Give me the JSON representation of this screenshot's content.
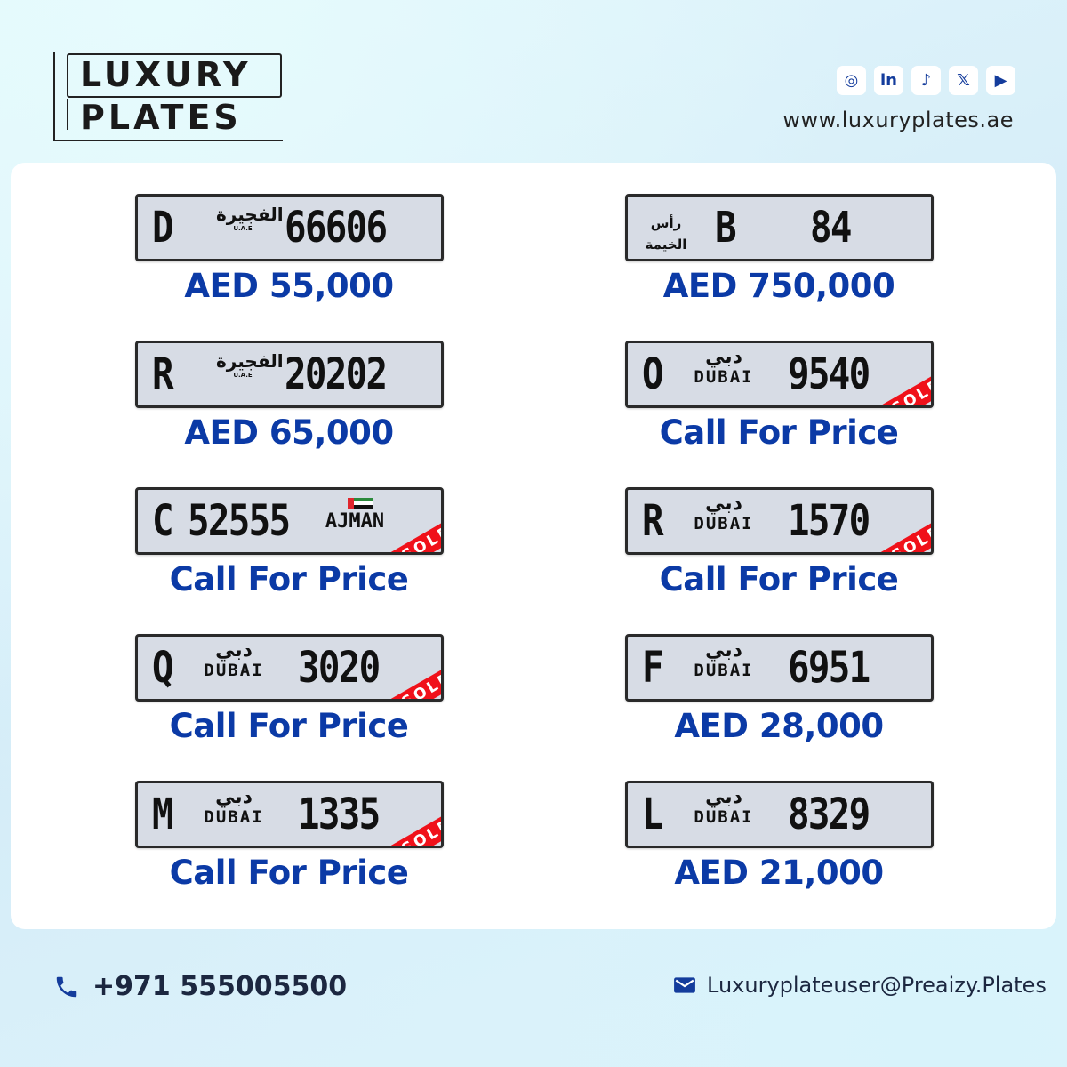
{
  "logo": {
    "line1": "LUXURY",
    "line2": "PLATES"
  },
  "header": {
    "social": [
      {
        "icon": "instagram-icon",
        "glyph": "◎"
      },
      {
        "icon": "linkedin-icon",
        "glyph": "in"
      },
      {
        "icon": "tiktok-icon",
        "glyph": "♪"
      },
      {
        "icon": "x-icon",
        "glyph": "𝕏"
      },
      {
        "icon": "youtube-icon",
        "glyph": "▶"
      }
    ],
    "website": "www.luxuryplates.ae"
  },
  "plates": [
    {
      "letter": "D",
      "number": "66606",
      "emirate": "fujairah",
      "emirate_ar": "الفجيرة",
      "emirate_en": "U.A.E",
      "sold": false,
      "price": "AED 55,000"
    },
    {
      "letter": "B",
      "number": "84",
      "emirate": "rak",
      "emirate_ar": "رأس الخيمة",
      "sold": false,
      "price": "AED 750,000"
    },
    {
      "letter": "R",
      "number": "20202",
      "emirate": "fujairah",
      "emirate_ar": "الفجيرة",
      "emirate_en": "U.A.E",
      "sold": false,
      "price": "AED 65,000"
    },
    {
      "letter": "O",
      "number": "9540",
      "emirate": "dubai",
      "emirate_ar": "دبي",
      "emirate_en": "DUBAI",
      "sold": true,
      "price": "Call For Price"
    },
    {
      "letter": "C",
      "number": "52555",
      "emirate": "ajman",
      "emirate_en": "AJMAN",
      "sold": true,
      "price": "Call For Price"
    },
    {
      "letter": "R",
      "number": "1570",
      "emirate": "dubai",
      "emirate_ar": "دبي",
      "emirate_en": "DUBAI",
      "sold": true,
      "price": "Call For Price"
    },
    {
      "letter": "Q",
      "number": "3020",
      "emirate": "dubai",
      "emirate_ar": "دبي",
      "emirate_en": "DUBAI",
      "sold": true,
      "price": "Call For Price"
    },
    {
      "letter": "F",
      "number": "6951",
      "emirate": "dubai",
      "emirate_ar": "دبي",
      "emirate_en": "DUBAI",
      "sold": false,
      "price": "AED 28,000"
    },
    {
      "letter": "M",
      "number": "1335",
      "emirate": "dubai",
      "emirate_ar": "دبي",
      "emirate_en": "DUBAI",
      "sold": true,
      "price": "Call For Price"
    },
    {
      "letter": "L",
      "number": "8329",
      "emirate": "dubai",
      "emirate_ar": "دبي",
      "emirate_en": "DUBAI",
      "sold": false,
      "price": "AED 21,000"
    }
  ],
  "sold_label": "SOLD",
  "footer": {
    "phone": "+971 555005500",
    "email": "Luxuryplateuser@Preaizy.Plates"
  },
  "colors": {
    "price": "#0b3aa6",
    "sold": "#f0111a",
    "icon": "#143c9c"
  }
}
